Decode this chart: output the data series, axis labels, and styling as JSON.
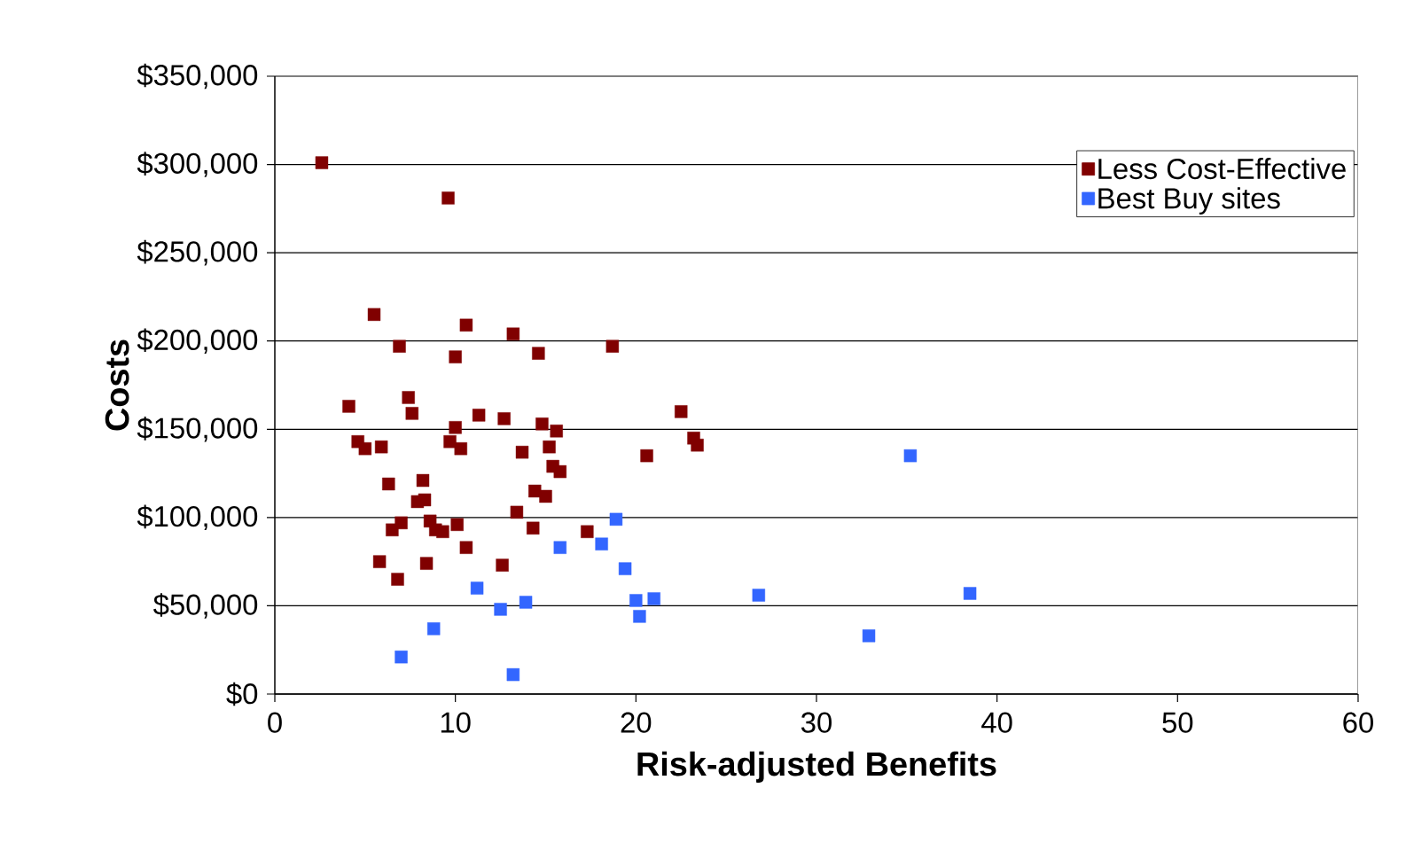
{
  "chart_data": {
    "type": "scatter",
    "xlabel": "Risk-adjusted Benefits",
    "ylabel": "Costs",
    "xlim": [
      0,
      60
    ],
    "xticks": [
      0,
      10,
      20,
      30,
      40,
      50,
      60
    ],
    "ylim": [
      0,
      350000
    ],
    "yticks": [
      {
        "value": 0,
        "label": "$0"
      },
      {
        "value": 50000,
        "label": "$50,000"
      },
      {
        "value": 100000,
        "label": "$100,000"
      },
      {
        "value": 150000,
        "label": "$150,000"
      },
      {
        "value": 200000,
        "label": "$200,000"
      },
      {
        "value": 250000,
        "label": "$250,000"
      },
      {
        "value": 300000,
        "label": "$300,000"
      },
      {
        "value": 350000,
        "label": "$350,000"
      }
    ],
    "grid": "y",
    "legend": "top right",
    "marker": "square",
    "series": [
      {
        "name": "Less Cost-Effective",
        "color": "#800000",
        "x": [
          2.6,
          9.6,
          5.5,
          10.6,
          13.2,
          6.9,
          14.6,
          18.7,
          10.0,
          4.1,
          7.4,
          7.6,
          10.0,
          11.3,
          12.7,
          14.8,
          15.6,
          22.5,
          23.2,
          23.4,
          4.6,
          5.0,
          5.9,
          9.7,
          10.3,
          13.7,
          15.2,
          15.4,
          15.8,
          20.6,
          6.3,
          8.2,
          8.3,
          7.9,
          14.4,
          15.0,
          7.0,
          6.5,
          8.6,
          8.9,
          9.3,
          10.1,
          13.4,
          14.3,
          17.3,
          10.6,
          5.8,
          6.8,
          8.4,
          12.6
        ],
        "values": [
          301000,
          281000,
          215000,
          209000,
          204000,
          197000,
          193000,
          197000,
          191000,
          163000,
          168000,
          159000,
          151000,
          158000,
          156000,
          153000,
          149000,
          160000,
          145000,
          141000,
          143000,
          139000,
          140000,
          143000,
          139000,
          137000,
          140000,
          129000,
          126000,
          135000,
          119000,
          121000,
          110000,
          109000,
          115000,
          112000,
          97000,
          93000,
          98000,
          93000,
          92000,
          96000,
          103000,
          94000,
          92000,
          83000,
          75000,
          65000,
          74000,
          73000
        ]
      },
      {
        "name": "Best Buy sites",
        "color": "#3366ff",
        "x": [
          7.0,
          8.8,
          11.2,
          12.5,
          13.2,
          13.9,
          15.8,
          18.1,
          18.9,
          19.4,
          20.0,
          20.2,
          21.0,
          26.8,
          32.9,
          35.2,
          38.5
        ],
        "values": [
          21000,
          37000,
          60000,
          48000,
          11000,
          52000,
          83000,
          85000,
          99000,
          71000,
          53000,
          44000,
          54000,
          56000,
          33000,
          135000,
          57000
        ]
      }
    ]
  }
}
